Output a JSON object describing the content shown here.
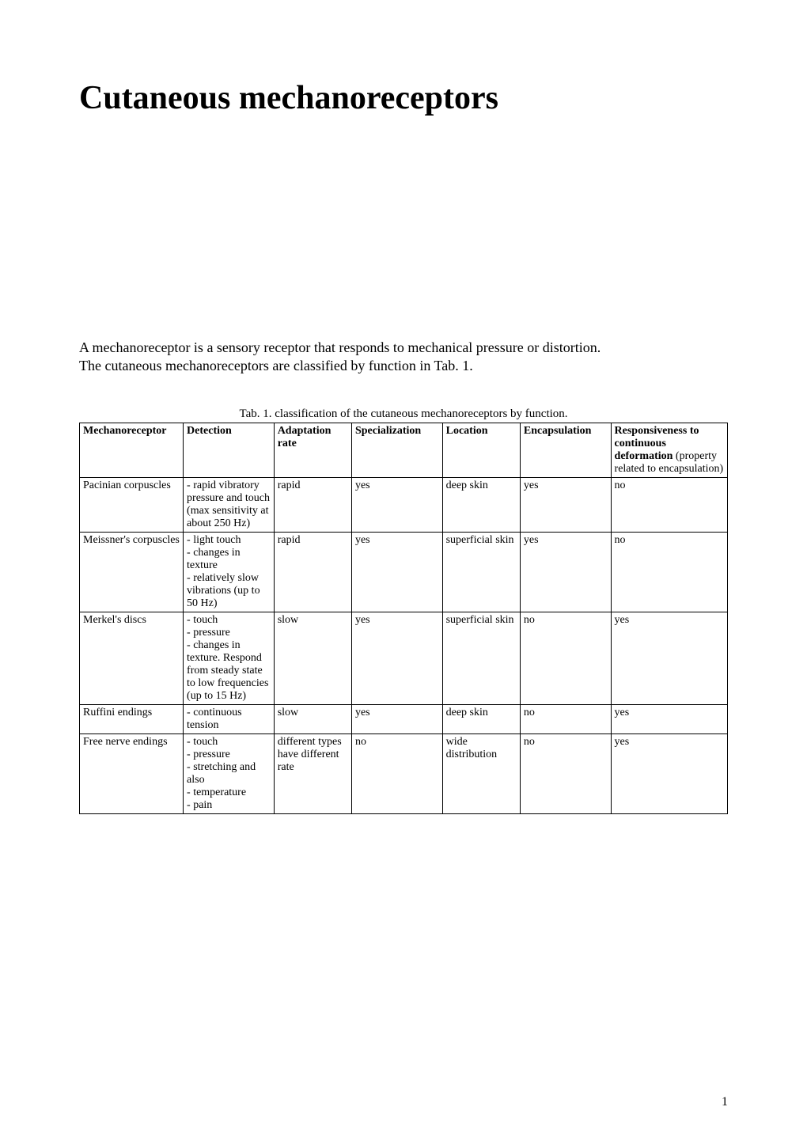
{
  "title": "Cutaneous mechanoreceptors",
  "intro_line1": "A mechanoreceptor is a sensory receptor that responds to mechanical pressure or distortion.",
  "intro_line2": "The cutaneous mechanoreceptors are classified by function in Tab. 1.",
  "table_caption": "Tab. 1. classification of the cutaneous mechanoreceptors by function.",
  "headers": {
    "mechanoreceptor": "Mechanoreceptor",
    "detection": "Detection",
    "adaptation": "Adaptation rate",
    "specialization": "Specialization",
    "location": "Location",
    "encapsulation": "Encapsulation",
    "responsiveness_bold": "Responsiveness to continuous deformation",
    "responsiveness_normal": " (property related to encapsulation)"
  },
  "rows": [
    {
      "mechanoreceptor": "Pacinian corpuscles",
      "detection": "- rapid vibratory pressure and touch (max sensitivity at about 250 Hz)",
      "adaptation": "rapid",
      "specialization": "yes",
      "location": "deep skin",
      "encapsulation": "yes",
      "responsiveness": "no"
    },
    {
      "mechanoreceptor": "Meissner's corpuscles",
      "detection": "- light touch\n- changes in texture\n- relatively slow vibrations (up to 50 Hz)",
      "adaptation": "rapid",
      "specialization": "yes",
      "location": "superficial skin",
      "encapsulation": "yes",
      "responsiveness": "no"
    },
    {
      "mechanoreceptor": "Merkel's discs",
      "detection": "- touch\n- pressure\n- changes in texture. Respond from steady state to low frequencies (up to 15 Hz)",
      "adaptation": "slow",
      "specialization": "yes",
      "location": "superficial skin",
      "encapsulation": "no",
      "responsiveness": "yes"
    },
    {
      "mechanoreceptor": "Ruffini endings",
      "detection": "- continuous tension",
      "adaptation": "slow",
      "specialization": "yes",
      "location": "deep skin",
      "encapsulation": "no",
      "responsiveness": "yes"
    },
    {
      "mechanoreceptor": "Free nerve endings",
      "detection": "- touch\n- pressure\n- stretching and also\n- temperature\n- pain",
      "adaptation": "different types have different rate",
      "specialization": "no",
      "location": "wide distribution",
      "encapsulation": "no",
      "responsiveness": "yes"
    }
  ],
  "page_number": "1",
  "colors": {
    "background": "#ffffff",
    "text": "#000000",
    "border": "#000000"
  },
  "typography": {
    "title_fontsize": 42,
    "body_fontsize": 18,
    "caption_fontsize": 15,
    "table_fontsize": 14,
    "font_family": "Times New Roman"
  }
}
